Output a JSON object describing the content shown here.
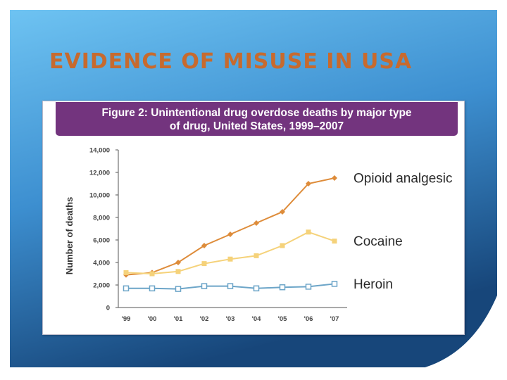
{
  "slide": {
    "title": "EVIDENCE OF MISUSE IN USA",
    "colors": {
      "title": "#c76a2e",
      "background_light": "#5fb5ec",
      "background_dark": "#1c4d80",
      "header": "#73347e"
    }
  },
  "chart_data": {
    "type": "line",
    "title_line1": "Figure 2: Unintentional drug overdose deaths by major type",
    "title_line2": "of drug, United States, 1999–2007",
    "xlabel": "",
    "ylabel": "Number of deaths",
    "categories": [
      "'99",
      "'00",
      "'01",
      "'02",
      "'03",
      "'04",
      "'05",
      "'06",
      "'07"
    ],
    "ylim": [
      0,
      14000
    ],
    "yticks": [
      {
        "value": 0,
        "label": "0"
      },
      {
        "value": 2000,
        "label": "2,000"
      },
      {
        "value": 4000,
        "label": "4,000"
      },
      {
        "value": 6000,
        "label": "6,000"
      },
      {
        "value": 8000,
        "label": "8,000"
      },
      {
        "value": 10000,
        "label": "10,000"
      },
      {
        "value": 12000,
        "label": "12,000"
      },
      {
        "value": 14000,
        "label": "14,000"
      }
    ],
    "grid": false,
    "legend": "labels at right end of lines",
    "series": [
      {
        "name": "Opioid analgesic",
        "color": "#de8c3a",
        "marker": "diamond",
        "values": [
          2900,
          3100,
          4000,
          5500,
          6500,
          7500,
          8500,
          11000,
          11500
        ]
      },
      {
        "name": "Cocaine",
        "color": "#f5d27a",
        "marker": "square",
        "values": [
          3100,
          3000,
          3200,
          3900,
          4300,
          4600,
          5500,
          6700,
          5900
        ]
      },
      {
        "name": "Heroin",
        "color": "#6ca5c8",
        "marker": "open-square",
        "values": [
          1700,
          1700,
          1650,
          1900,
          1900,
          1700,
          1800,
          1850,
          2100
        ]
      }
    ]
  }
}
